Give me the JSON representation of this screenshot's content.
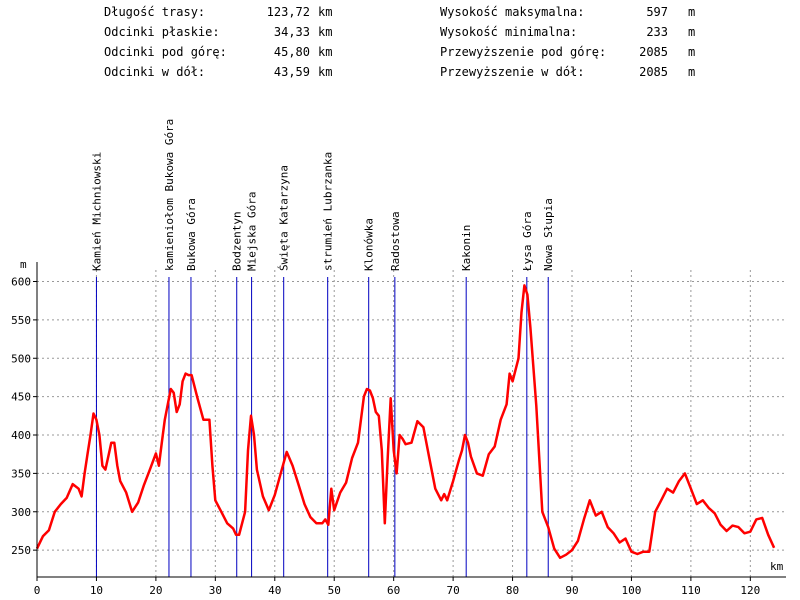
{
  "stats": [
    {
      "label": "Długość trasy:",
      "value": "123,72",
      "unit": "km"
    },
    {
      "label": "Odcinki płaskie:",
      "value": "34,33",
      "unit": "km"
    },
    {
      "label": "Odcinki pod górę:",
      "value": "45,80",
      "unit": "km"
    },
    {
      "label": "Odcinki w dół:",
      "value": "43,59",
      "unit": "km"
    },
    {
      "label": "Wysokość maksymalna:",
      "value": "597",
      "unit": "m"
    },
    {
      "label": "Wysokość minimalna:",
      "value": "233",
      "unit": "m"
    },
    {
      "label": "Przewyższenie pod górę:",
      "value": "2085",
      "unit": "m"
    },
    {
      "label": "Przewyższenie w dół:",
      "value": "2085",
      "unit": "m"
    }
  ],
  "chart_data": {
    "type": "line",
    "xlabel": "km",
    "ylabel": "m",
    "xlim": [
      0,
      126
    ],
    "ylim": [
      215,
      615
    ],
    "xticks": [
      0,
      10,
      20,
      30,
      40,
      50,
      60,
      70,
      80,
      90,
      100,
      110,
      120
    ],
    "yticks": [
      250,
      300,
      350,
      400,
      450,
      500,
      550,
      600
    ],
    "grid": true,
    "colors": {
      "profile": "#ff0000",
      "waypoint": "#0000c0",
      "grid": "#999999",
      "axis": "#000000"
    },
    "waypoints": [
      {
        "name": "Kamień Michniowski",
        "km": 10.0
      },
      {
        "name": "kamieniołom Bukowa Góra",
        "km": 22.2
      },
      {
        "name": "Bukowa Góra",
        "km": 25.9
      },
      {
        "name": "Bodzentyn",
        "km": 33.6
      },
      {
        "name": "Miejska Góra",
        "km": 36.1
      },
      {
        "name": "Święta Katarzyna",
        "km": 41.5
      },
      {
        "name": "strumień Lubrzanka",
        "km": 48.9
      },
      {
        "name": "Klonówka",
        "km": 55.8
      },
      {
        "name": "Radostowa",
        "km": 60.2
      },
      {
        "name": "Kakonin",
        "km": 72.2
      },
      {
        "name": "Łysa Góra",
        "km": 82.4
      },
      {
        "name": "Nowa Słupia",
        "km": 86.0
      }
    ],
    "series": [
      {
        "x": [
          0,
          1,
          2,
          3,
          4,
          5,
          6,
          7,
          7.5,
          8,
          8.5,
          9,
          9.5,
          10,
          10.5,
          11,
          11.5,
          12,
          12.5,
          13,
          13.5,
          14,
          15,
          16,
          17,
          18,
          19,
          20,
          20.5,
          21,
          21.5,
          22,
          22.5,
          23,
          23.5,
          24,
          24.5,
          25,
          25.5,
          26,
          27,
          28,
          29,
          29.5,
          30,
          31,
          32,
          33,
          33.5,
          34,
          35,
          35.5,
          36,
          36.5,
          37,
          38,
          39,
          40,
          41,
          42,
          43,
          44,
          45,
          46,
          47,
          48,
          48.5,
          49,
          49.5,
          50,
          51,
          52,
          53,
          54,
          55,
          55.5,
          56,
          56.5,
          57,
          57.5,
          58,
          58.5,
          59,
          59.5,
          60,
          60.5,
          61,
          61.5,
          62,
          63,
          64,
          65,
          66,
          67,
          68,
          68.5,
          69,
          70,
          71,
          71.5,
          72,
          72.5,
          73,
          74,
          75,
          76,
          77,
          78,
          79,
          79.5,
          80,
          81,
          81.5,
          82,
          82.5,
          83,
          84,
          85,
          86,
          87,
          88,
          89,
          90,
          91,
          92,
          93,
          94,
          95,
          96,
          97,
          98,
          99,
          100,
          101,
          102,
          103,
          104,
          105,
          106,
          107,
          108,
          109,
          110,
          111,
          112,
          113,
          114,
          115,
          116,
          117,
          118,
          119,
          120,
          121,
          122,
          123,
          124
        ],
        "y": [
          252,
          268,
          276,
          300,
          310,
          318,
          336,
          330,
          320,
          350,
          375,
          400,
          428,
          420,
          400,
          360,
          355,
          372,
          390,
          390,
          360,
          340,
          325,
          300,
          312,
          335,
          355,
          376,
          360,
          390,
          420,
          440,
          460,
          455,
          430,
          440,
          470,
          480,
          478,
          478,
          448,
          420,
          420,
          360,
          315,
          300,
          285,
          278,
          270,
          270,
          300,
          380,
          425,
          400,
          355,
          320,
          302,
          322,
          350,
          378,
          360,
          335,
          310,
          293,
          285,
          285,
          290,
          283,
          330,
          302,
          325,
          338,
          370,
          390,
          450,
          460,
          458,
          448,
          430,
          425,
          380,
          285,
          370,
          448,
          380,
          350,
          400,
          395,
          388,
          390,
          418,
          410,
          370,
          330,
          315,
          323,
          315,
          340,
          368,
          380,
          400,
          390,
          372,
          350,
          347,
          375,
          385,
          420,
          440,
          480,
          470,
          500,
          560,
          595,
          583,
          540,
          438,
          300,
          280,
          252,
          240,
          244,
          250,
          262,
          290,
          315,
          295,
          300,
          280,
          272,
          260,
          265,
          248,
          245,
          248,
          248,
          300,
          315,
          330,
          325,
          340,
          350,
          330,
          310,
          315,
          305,
          298,
          283,
          275,
          282,
          280,
          272,
          274,
          290,
          292,
          270,
          253
        ]
      }
    ]
  }
}
